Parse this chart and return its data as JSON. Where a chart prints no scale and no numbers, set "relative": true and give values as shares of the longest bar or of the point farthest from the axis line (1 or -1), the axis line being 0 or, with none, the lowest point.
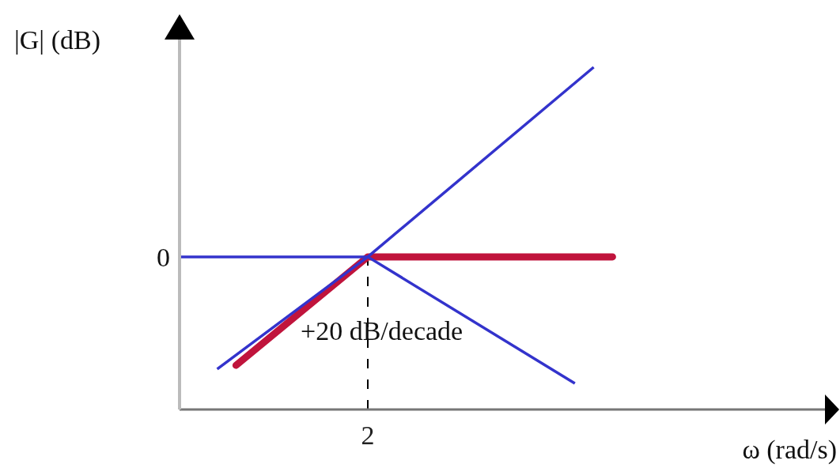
{
  "chart_data": {
    "type": "line",
    "relative": true,
    "ylabel": "|G| (dB)",
    "xlabel": "ω (rad/s)",
    "categories": [
      null,
      null,
      null,
      null,
      null,
      null,
      null,
      null,
      null,
      null,
      null,
      null,
      null,
      null,
      null,
      null,
      null,
      null,
      null,
      null,
      null,
      null,
      null,
      null
    ],
    "series": [
      {
        "color": "#c0143c",
        "values": [
          null,
          null,
          null,
          0.129,
          null,
          null,
          null,
          null,
          null,
          null,
          0.446,
          null,
          null,
          null,
          null,
          null,
          null,
          null,
          null,
          null,
          null,
          null,
          null,
          0.446
        ]
      },
      {
        "color": "#3333cc",
        "values": [
          null,
          null,
          0.118,
          null,
          null,
          null,
          null,
          null,
          null,
          null,
          0.446,
          null,
          null,
          null,
          null,
          null,
          null,
          null,
          null,
          null,
          null,
          null,
          1,
          null
        ]
      },
      {
        "color": "#3333cc",
        "values": [
          0.446,
          null,
          null,
          null,
          null,
          null,
          null,
          null,
          null,
          null,
          0.446,
          null,
          null,
          null,
          null,
          null,
          null,
          null,
          null,
          null,
          null,
          null,
          null,
          null
        ]
      },
      {
        "color": "#3333cc",
        "values": [
          null,
          null,
          null,
          null,
          null,
          null,
          null,
          null,
          null,
          null,
          0.446,
          null,
          null,
          null,
          null,
          null,
          null,
          null,
          null,
          null,
          null,
          0.076,
          null,
          null
        ]
      }
    ],
    "ref_lines": [
      {
        "axis": "x",
        "value": "2",
        "line_style": "dashed",
        "color": "#000000"
      }
    ],
    "annotations": [
      "0",
      "+20 dB/decade"
    ]
  }
}
